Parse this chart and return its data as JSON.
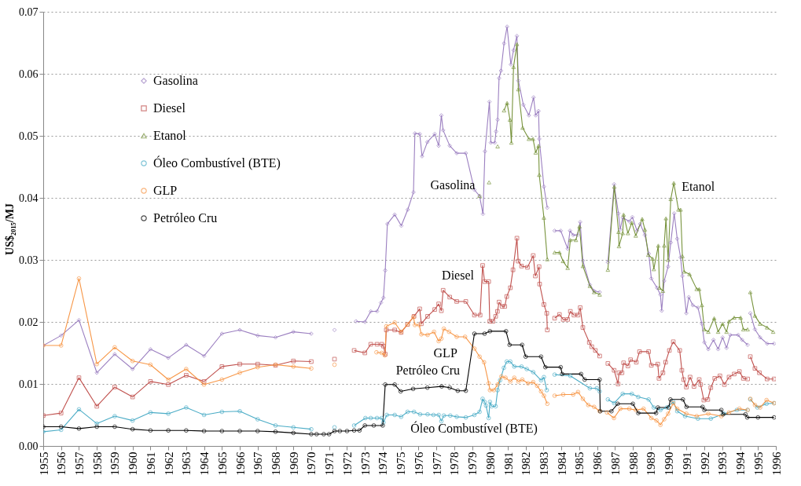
{
  "chart_data": {
    "type": "line",
    "ylabel": "US$₂₀₁₅/MJ",
    "grid": "y",
    "legend": "top left",
    "xlim": [
      1955,
      1996
    ],
    "xticks": [
      1955,
      1956,
      1957,
      1958,
      1959,
      1960,
      1961,
      1962,
      1963,
      1964,
      1965,
      1966,
      1967,
      1968,
      1969,
      1970,
      1971,
      1972,
      1973,
      1974,
      1975,
      1976,
      1977,
      1978,
      1979,
      1980,
      1981,
      1982,
      1983,
      1984,
      1985,
      1986,
      1987,
      1988,
      1989,
      1990,
      1991,
      1992,
      1993,
      1994,
      1995,
      1996
    ],
    "ylim": [
      0,
      0.07
    ],
    "yticks": [
      {
        "value": 0,
        "label": "0.00"
      },
      {
        "value": 0.01,
        "label": "0.01"
      },
      {
        "value": 0.02,
        "label": "0.02"
      },
      {
        "value": 0.03,
        "label": "0.03"
      },
      {
        "value": 0.04,
        "label": "0.04"
      },
      {
        "value": 0.05,
        "label": "0.05"
      },
      {
        "value": 0.06,
        "label": "0.06"
      },
      {
        "value": 0.07,
        "label": "0.07"
      }
    ],
    "annotations": [
      "Gasolina",
      "Diesel",
      "GLP",
      "Petróleo Cru",
      "Óleo Combustível (BTE)",
      "Etanol"
    ],
    "series": [
      {
        "name": "Gasolina",
        "color": "#9b7fc0",
        "marker": "diamond",
        "x": [
          1955,
          1956,
          1957,
          1958,
          1959,
          1960,
          1961,
          1962,
          1963,
          1964,
          1965,
          1966,
          1967,
          1968,
          1969,
          1970,
          1970.6,
          1971.3,
          1971.9,
          1972.5,
          1973,
          1973.33,
          1973.68,
          1973.9,
          1974.04,
          1974.14,
          1974.26,
          1974.67,
          1975.04,
          1975.4,
          1975.72,
          1975.8,
          1976.07,
          1976.2,
          1976.5,
          1976.91,
          1977.13,
          1977.28,
          1977.38,
          1977.75,
          1978.14,
          1978.65,
          1979.13,
          1979.42,
          1979.61,
          1979.72,
          1979.97,
          1980.05,
          1980.27,
          1980.34,
          1980.43,
          1980.51,
          1980.62,
          1980.79,
          1980.96,
          1981.17,
          1981.32,
          1981.51,
          1981.59,
          1981.87,
          1982.18,
          1982.44,
          1982.56,
          1982.72,
          1982.76,
          1983.02,
          1983.21,
          1983.4,
          1983.62,
          1983.96,
          1984.35,
          1984.48,
          1984.66,
          1984.9,
          1985.05,
          1985.2,
          1985.59,
          1985.83,
          1986.14,
          1986.4,
          1986.6,
          1986.95,
          1987.19,
          1987.29,
          1987.43,
          1987.8,
          1987.97,
          1988.23,
          1988.41,
          1988.67,
          1988.89,
          1989.03,
          1989.35,
          1989.54,
          1989.61,
          1989.75,
          1989.97,
          1990.12,
          1990.31,
          1990.48,
          1990.67,
          1990.77,
          1990.99,
          1991.13,
          1991.35,
          1991.64,
          1991.86,
          1992.0,
          1992.22,
          1992.51,
          1992.77,
          1993.02,
          1993.24,
          1993.45,
          1993.89,
          1994.11,
          1994.42,
          1994.5,
          1994.57,
          1994.83,
          1995.12,
          1995.51,
          1995.9
        ],
        "values": [
          0.0162,
          0.0178,
          0.0203,
          0.0118,
          0.0148,
          0.0124,
          0.0156,
          0.0142,
          0.0163,
          0.0145,
          0.0181,
          0.0187,
          0.0178,
          0.0175,
          0.0184,
          0.0181,
          null,
          0.0187,
          null,
          0.0201,
          0.02,
          0.0217,
          0.0217,
          0.0231,
          0.0239,
          0.0283,
          0.0358,
          0.0373,
          0.0355,
          0.0381,
          0.0409,
          0.0504,
          0.0503,
          0.0467,
          0.049,
          0.0503,
          0.0484,
          0.0533,
          0.0509,
          0.0484,
          0.0472,
          0.0472,
          0.0413,
          0.0403,
          0.0374,
          0.0475,
          0.0555,
          0.0489,
          0.0489,
          0.0507,
          0.0526,
          0.0593,
          0.0605,
          0.0649,
          0.0676,
          0.0615,
          0.0638,
          0.0661,
          0.0589,
          0.055,
          0.0533,
          0.0562,
          0.0533,
          0.054,
          0.0495,
          0.0418,
          0.0384,
          null,
          0.0347,
          0.0347,
          0.0318,
          0.0347,
          0.034,
          0.034,
          0.0361,
          0.0299,
          0.026,
          0.025,
          0.0248,
          null,
          0.0296,
          0.0422,
          0.0375,
          0.0349,
          0.0368,
          0.0362,
          0.0369,
          0.0347,
          0.0358,
          0.034,
          0.031,
          0.027,
          0.0255,
          0.0244,
          0.0218,
          0.0266,
          0.0289,
          0.0328,
          0.0375,
          0.0334,
          0.0304,
          0.0274,
          0.0214,
          0.024,
          0.0227,
          0.0223,
          0.0197,
          0.0167,
          0.0156,
          0.0171,
          0.0156,
          0.0175,
          0.0158,
          0.0179,
          0.0179,
          0.0171,
          0.0163,
          null,
          0.0214,
          0.0188,
          0.0175,
          0.0165,
          0.0165
        ]
      },
      {
        "name": "Diesel",
        "color": "#c0504d",
        "marker": "square",
        "x": [
          1955,
          1956,
          1957,
          1958,
          1959,
          1960,
          1961,
          1962,
          1963,
          1964,
          1965,
          1966,
          1967,
          1968,
          1969,
          1970,
          1970.6,
          1971.3,
          1971.9,
          1972.4,
          1973,
          1973.33,
          1973.68,
          1973.94,
          1974.04,
          1974.14,
          1974.2,
          1974.67,
          1975.03,
          1975.39,
          1975.75,
          1976.07,
          1976.16,
          1976.51,
          1976.91,
          1977.13,
          1977.28,
          1977.38,
          1977.75,
          1978.14,
          1978.65,
          1979.13,
          1979.45,
          1979.59,
          1979.7,
          1979.93,
          1979.99,
          1980.17,
          1980.32,
          1980.42,
          1980.51,
          1980.68,
          1980.83,
          1980.94,
          1981.14,
          1981.29,
          1981.51,
          1981.58,
          1981.77,
          1982.1,
          1982.42,
          1982.54,
          1982.75,
          1982.78,
          1983.02,
          1983.18,
          1983.21,
          1983.4,
          1983.62,
          1983.89,
          1984.1,
          1984.35,
          1984.5,
          1984.7,
          1984.93,
          1985.05,
          1985.2,
          1985.56,
          1985.7,
          1985.9,
          1986.14,
          1986.4,
          1986.6,
          1986.95,
          1987.17,
          1987.22,
          1987.39,
          1987.48,
          1987.72,
          1987.87,
          1988.19,
          1988.37,
          1988.88,
          1989.03,
          1989.39,
          1989.46,
          1989.68,
          1989.83,
          1990.04,
          1990.26,
          1990.62,
          1990.74,
          1990.84,
          1990.99,
          1991.2,
          1991.42,
          1991.71,
          1991.79,
          1991.97,
          1992.19,
          1992.36,
          1992.58,
          1992.87,
          1993.12,
          1993.38,
          1993.67,
          1993.96,
          1994.18,
          1994.42,
          1994.5,
          1994.57,
          1994.83,
          1995.08,
          1995.51,
          1995.9
        ],
        "values": [
          0.0049,
          0.0053,
          0.011,
          0.0064,
          0.0095,
          0.0079,
          0.0104,
          0.0099,
          0.0114,
          0.0104,
          0.0128,
          0.0132,
          0.0132,
          0.013,
          0.0137,
          0.0136,
          null,
          0.014,
          null,
          0.0154,
          0.015,
          0.0164,
          0.0164,
          0.0164,
          0.0161,
          0.0148,
          0.0187,
          0.0187,
          0.0183,
          0.0196,
          0.0209,
          0.0221,
          0.0197,
          0.0209,
          0.022,
          0.0229,
          0.0218,
          0.0251,
          0.024,
          0.0233,
          0.0233,
          0.0211,
          0.0211,
          0.0291,
          0.0265,
          0.0265,
          0.0201,
          0.0201,
          0.0209,
          0.0217,
          0.0232,
          0.0225,
          0.0225,
          0.0241,
          0.0255,
          0.0284,
          0.0335,
          0.0298,
          0.029,
          0.0288,
          0.0307,
          0.0274,
          0.0289,
          0.0261,
          0.0228,
          0.0214,
          0.0187,
          null,
          0.0206,
          0.0212,
          0.0204,
          0.0204,
          0.0217,
          0.0211,
          0.0211,
          0.0223,
          0.0191,
          0.0167,
          0.016,
          0.0154,
          0.0145,
          null,
          0.0133,
          0.0122,
          0.01,
          0.0118,
          0.0118,
          0.0134,
          0.0129,
          0.0139,
          0.0135,
          0.0152,
          0.0152,
          0.013,
          0.0132,
          0.0109,
          0.0118,
          0.0135,
          0.0154,
          0.0168,
          0.0154,
          0.0122,
          0.0107,
          0.0095,
          0.0111,
          0.0096,
          0.0107,
          0.0099,
          0.0074,
          0.0075,
          0.0094,
          0.0109,
          0.0113,
          0.0099,
          0.0111,
          0.0116,
          0.012,
          0.0109,
          0.0108,
          null,
          0.0144,
          0.0125,
          0.0118,
          0.0108,
          0.0108
        ]
      },
      {
        "name": "Etanol",
        "color": "#77933c",
        "marker": "triangle",
        "x": [
          1979.42,
          1979.7,
          1979.95,
          1980.2,
          1980.43,
          1980.6,
          1980.79,
          1980.96,
          1981.12,
          1981.2,
          1981.32,
          1981.51,
          1981.59,
          1981.83,
          1982.18,
          1982.41,
          1982.56,
          1982.72,
          1982.76,
          1983.02,
          1983.21,
          1983.4,
          1983.62,
          1983.89,
          1984.09,
          1984.35,
          1984.5,
          1984.81,
          1985.01,
          1985.2,
          1985.59,
          1985.83,
          1986.14,
          1986.4,
          1986.6,
          1986.96,
          1987.2,
          1987.22,
          1987.43,
          1987.48,
          1987.72,
          1987.94,
          1988.16,
          1988.52,
          1988.67,
          1988.86,
          1989.1,
          1989.17,
          1989.42,
          1989.49,
          1989.68,
          1989.75,
          1989.85,
          1989.97,
          1990.12,
          1990.29,
          1990.55,
          1990.67,
          1990.77,
          1990.87,
          1991.17,
          1991.57,
          1991.71,
          1991.86,
          1992.0,
          1992.22,
          1992.55,
          1992.77,
          1993.02,
          1993.24,
          1993.38,
          1993.67,
          1994.03,
          1994.18,
          1994.42,
          1994.5,
          1994.57,
          1994.83,
          1995.12,
          1995.51,
          1995.85
        ],
        "values": [
          0.0403,
          null,
          0.0425,
          null,
          0.0483,
          null,
          0.0541,
          0.0553,
          0.0526,
          0.0489,
          0.0611,
          0.0648,
          0.0575,
          0.0513,
          0.0495,
          0.0495,
          0.0473,
          0.0484,
          0.0437,
          0.0368,
          0.0301,
          null,
          0.0312,
          0.0312,
          0.0298,
          0.0287,
          0.0332,
          0.0332,
          0.0354,
          0.029,
          0.0258,
          0.0248,
          0.0244,
          null,
          0.0284,
          0.0418,
          0.0345,
          0.0322,
          0.0343,
          0.0373,
          0.0343,
          0.036,
          0.0339,
          0.0366,
          0.0349,
          0.0308,
          0.0302,
          0.0285,
          0.0323,
          0.0255,
          0.025,
          0.0323,
          0.0367,
          0.03,
          0.0398,
          0.0424,
          0.0381,
          0.0381,
          0.0306,
          0.0281,
          0.0277,
          0.0253,
          0.0253,
          0.0227,
          0.0188,
          0.0184,
          0.0206,
          0.0184,
          0.0197,
          0.0184,
          0.0201,
          0.0207,
          0.0207,
          0.0188,
          0.0188,
          null,
          0.0248,
          0.021,
          0.0197,
          0.0191,
          0.0184
        ]
      },
      {
        "name": "Óleo Combustível (BTE)",
        "color": "#4bacc6",
        "marker": "circle",
        "x": [
          1955,
          1956,
          1957,
          1958,
          1959,
          1960,
          1961,
          1962,
          1963,
          1964,
          1965,
          1966,
          1967,
          1968,
          1969,
          1970,
          1970.6,
          1971.3,
          1971.9,
          1972.4,
          1973.03,
          1973.33,
          1973.68,
          1973.94,
          1974.04,
          1974.23,
          1974.67,
          1975.03,
          1975.39,
          1975.75,
          1976.09,
          1976.51,
          1976.84,
          1977.13,
          1977.28,
          1977.42,
          1977.78,
          1978.14,
          1978.65,
          1979.13,
          1979.42,
          1979.59,
          1979.7,
          1979.78,
          1979.93,
          1980.0,
          1980.1,
          1980.32,
          1980.43,
          1980.57,
          1980.78,
          1980.94,
          1981.14,
          1981.36,
          1981.77,
          1982.06,
          1982.42,
          1982.86,
          1983.02,
          1983.18,
          1983.4,
          1983.62,
          1984.5,
          1985.59,
          1985.98,
          1986.14,
          1986.4,
          1986.6,
          1986.95,
          1987.43,
          1987.94,
          1988.3,
          1988.88,
          1989.17,
          1989.54,
          1989.9,
          1990.26,
          1990.48,
          1990.92,
          1991.64,
          1992.36,
          1993.09,
          1993.82,
          1994.42,
          1994.5,
          1994.57,
          1994.97,
          1995.48,
          1995.9
        ],
        "values": [
          0.0023,
          0.0026,
          0.0059,
          0.0036,
          0.0048,
          0.0041,
          0.0054,
          0.0052,
          0.0062,
          0.005,
          0.0055,
          0.0056,
          0.0043,
          0.0033,
          0.003,
          0.0027,
          null,
          0.003,
          null,
          0.0033,
          0.0045,
          0.0045,
          0.0045,
          0.0045,
          0.0038,
          0.005,
          0.005,
          0.0047,
          0.0055,
          0.0055,
          0.0051,
          0.0051,
          0.005,
          0.005,
          0.004,
          0.0049,
          0.0049,
          0.0047,
          0.0046,
          0.005,
          0.0055,
          0.0076,
          0.0071,
          0.0065,
          0.0045,
          0.0071,
          0.0064,
          0.0064,
          0.009,
          0.0106,
          0.0126,
          0.0136,
          0.0136,
          0.0128,
          0.0128,
          0.0124,
          0.0119,
          0.0106,
          0.0111,
          0.009,
          null,
          0.0115,
          0.0113,
          0.0093,
          0.0093,
          0.0088,
          null,
          0.0075,
          0.0069,
          0.0084,
          0.0084,
          0.0079,
          0.0075,
          0.0062,
          0.0058,
          0.0062,
          0.0071,
          0.0056,
          0.0048,
          0.0044,
          0.0044,
          0.0052,
          0.0058,
          0.0058,
          null,
          0.0075,
          0.0062,
          0.0068,
          0.0069
        ]
      },
      {
        "name": "GLP",
        "color": "#f79646",
        "marker": "circle",
        "x": [
          1955,
          1956,
          1957,
          1958,
          1959,
          1960,
          1961,
          1962,
          1963,
          1964,
          1965,
          1966,
          1967,
          1968,
          1969,
          1970,
          1970.6,
          1971.3,
          1972.4,
          1973.65,
          1973.94,
          1974.12,
          1974.2,
          1974.67,
          1975.03,
          1975.39,
          1975.72,
          1975.8,
          1976.04,
          1976.16,
          1976.51,
          1976.87,
          1977.13,
          1977.28,
          1977.42,
          1977.71,
          1978.14,
          1978.61,
          1979.13,
          1979.42,
          1979.67,
          1979.93,
          1980.0,
          1980.22,
          1980.43,
          1980.64,
          1980.87,
          1981.14,
          1981.36,
          1981.59,
          1981.81,
          1982.13,
          1982.42,
          1982.64,
          1982.86,
          1983.02,
          1983.21,
          1983.4,
          1983.62,
          1984.1,
          1984.66,
          1984.93,
          1985.2,
          1985.5,
          1985.83,
          1986.14,
          1986.4,
          1986.55,
          1986.94,
          1987.3,
          1987.8,
          1988.16,
          1988.6,
          1989.03,
          1989.32,
          1989.54,
          1989.75,
          1989.97,
          1990.26,
          1990.48,
          1990.99,
          1991.57,
          1992.22,
          1992.95,
          1993.38,
          1993.96,
          1994.42,
          1994.5,
          1994.57,
          1994.83,
          1995.12,
          1995.48,
          1995.9
        ],
        "values": [
          0.0162,
          0.0162,
          0.027,
          0.0132,
          0.0159,
          0.0137,
          0.0131,
          0.0107,
          0.0124,
          0.0099,
          0.0107,
          0.0118,
          0.0127,
          0.0131,
          0.0128,
          0.0125,
          null,
          0.0131,
          null,
          0.0151,
          0.015,
          0.0146,
          0.0193,
          0.0199,
          0.0184,
          0.0196,
          0.0208,
          0.0195,
          0.0195,
          0.018,
          0.0179,
          0.0184,
          0.0169,
          0.0173,
          0.0189,
          0.0184,
          0.0176,
          0.0176,
          0.0157,
          0.0144,
          0.0135,
          0.0101,
          0.009,
          0.009,
          0.0099,
          0.0112,
          0.011,
          0.0104,
          0.011,
          0.0104,
          0.0107,
          0.0101,
          0.0103,
          0.0097,
          0.0088,
          0.0081,
          0.0068,
          null,
          0.0081,
          0.0083,
          0.0083,
          0.0087,
          0.0076,
          0.0066,
          0.0063,
          0.0056,
          null,
          0.0054,
          0.0045,
          0.006,
          0.006,
          0.0058,
          0.006,
          0.0045,
          0.0041,
          0.0034,
          0.0043,
          0.0052,
          0.0069,
          0.006,
          0.0052,
          0.0048,
          0.0052,
          0.0048,
          0.0054,
          0.006,
          0.0058,
          null,
          0.0076,
          0.0066,
          0.0062,
          0.0074,
          0.0069
        ]
      },
      {
        "name": "Petróleo Cru",
        "color": "#000000",
        "marker": "circle",
        "x": [
          1955,
          1956,
          1957,
          1958,
          1959,
          1960,
          1961,
          1962,
          1963,
          1964,
          1965,
          1966,
          1967,
          1968,
          1969,
          1970,
          1970.3,
          1970.7,
          1971,
          1971.3,
          1971.6,
          1972,
          1972.4,
          1972.7,
          1973,
          1973.5,
          1974.0,
          1974.14,
          1974.67,
          1975.0,
          1975.7,
          1976.5,
          1977.3,
          1977.75,
          1978.2,
          1978.65,
          1979.13,
          1979.7,
          1980.0,
          1980.9,
          1981.1,
          1981.8,
          1982.0,
          1982.86,
          1983.1,
          1983.96,
          1984.04,
          1985.1,
          1985.3,
          1986.14,
          1986.17,
          1986.8,
          1987.15,
          1988.0,
          1988.3,
          1989.3,
          1989.4,
          1990.0,
          1990.1,
          1990.8,
          1991.0,
          1991.9,
          1992.0,
          1992.95,
          1993.05,
          1994.3,
          1994.4,
          1995.0,
          1995.9
        ],
        "values": [
          0.0031,
          0.0031,
          0.0028,
          0.0031,
          0.0031,
          0.0027,
          0.0025,
          0.0025,
          0.0025,
          0.0024,
          0.0024,
          0.0024,
          0.0024,
          0.0023,
          0.0021,
          0.0019,
          0.0019,
          0.0019,
          0.0019,
          0.0024,
          0.0024,
          0.0024,
          0.0025,
          0.0025,
          0.0033,
          0.0033,
          0.0033,
          0.0099,
          0.0099,
          0.0088,
          0.0092,
          0.0094,
          0.0096,
          0.0094,
          0.0089,
          0.0089,
          0.0181,
          0.0181,
          0.0185,
          0.0185,
          0.0163,
          0.0163,
          0.0144,
          0.0144,
          0.0127,
          0.0127,
          0.0116,
          0.0116,
          0.0107,
          0.0107,
          0.0056,
          0.0056,
          0.0068,
          0.0068,
          0.0053,
          0.0053,
          0.0062,
          0.0062,
          0.0075,
          0.0075,
          0.0063,
          0.0063,
          0.0058,
          0.0058,
          0.0051,
          0.0051,
          0.0046,
          0.0046,
          0.0046
        ]
      }
    ]
  }
}
